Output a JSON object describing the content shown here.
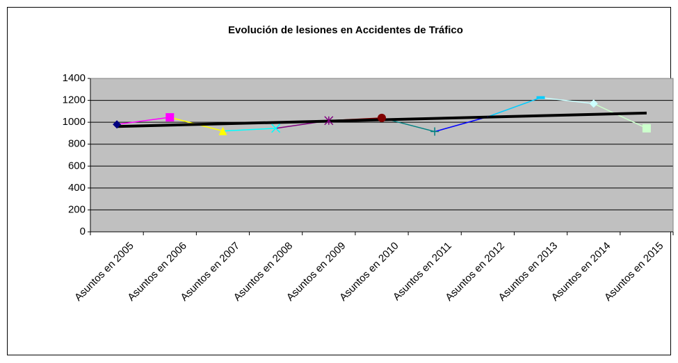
{
  "chart_data": {
    "type": "line",
    "title": "Evolución de lesiones en Accidentes de Tráfico",
    "categories": [
      "Asuntos en 2005",
      "Asuntos en 2006",
      "Asuntos en 2007",
      "Asuntos en 2008",
      "Asuntos en 2009",
      "Asuntos en 2010",
      "Asuntos en 2011",
      "Asuntos en 2012",
      "Asuntos en 2013",
      "Asuntos en 2014",
      "Asuntos en 2015"
    ],
    "values": [
      980,
      1045,
      920,
      945,
      1015,
      1040,
      915,
      1050,
      1225,
      1170,
      945
    ],
    "point_colors": [
      "#000080",
      "#ff00ff",
      "#ffff00",
      "#00ffff",
      "#800080",
      "#800000",
      "#008080",
      "#0000ff",
      "#00ccff",
      "#ccffff",
      "#ccffcc"
    ],
    "markers": [
      "diamond",
      "square",
      "triangle",
      "x",
      "star",
      "circle",
      "plus",
      "none",
      "dash",
      "diamond",
      "square"
    ],
    "ylim": [
      0,
      1400
    ],
    "yticks": [
      0,
      200,
      400,
      600,
      800,
      1000,
      1200,
      1400
    ],
    "grid": true,
    "trendline": "linear",
    "trendline_color": "#000000",
    "plot_background": "#c0c0c0"
  }
}
